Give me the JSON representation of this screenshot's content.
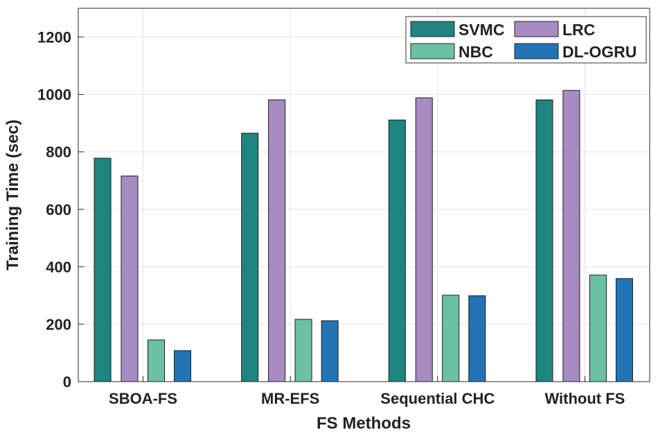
{
  "chart_data": {
    "type": "bar",
    "title": "",
    "xlabel": "FS Methods",
    "ylabel": "Training Time (sec)",
    "categories": [
      "SBOA-FS",
      "MR-EFS",
      "Sequential CHC",
      "Without FS"
    ],
    "ylim": [
      0,
      1300
    ],
    "yticks": [
      0,
      200,
      400,
      600,
      800,
      1000,
      1200
    ],
    "grid": true,
    "legend_position": "top-right",
    "series": [
      {
        "name": "SVMC",
        "color": "#1e8580",
        "values": [
          778,
          865,
          911,
          981
        ]
      },
      {
        "name": "LRC",
        "color": "#a78bc4",
        "values": [
          716,
          981,
          988,
          1014
        ]
      },
      {
        "name": "NBC",
        "color": "#6cc0a6",
        "values": [
          145,
          217,
          301,
          371
        ]
      },
      {
        "name": "DL-OGRU",
        "color": "#2374b5",
        "values": [
          108,
          212,
          299,
          359
        ]
      }
    ]
  }
}
